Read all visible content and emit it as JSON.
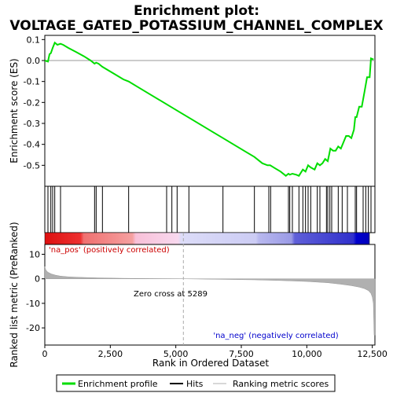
{
  "title_line1": "Enrichment plot:",
  "title_line2": "VOLTAGE_GATED_POTASSIUM_CHANNEL_COMPLEX",
  "chart_data": [
    {
      "type": "line",
      "panel": "enrichment-score",
      "ylabel": "Enrichment score (ES)",
      "xlim": [
        0,
        12600
      ],
      "ylim": [
        -0.6,
        0.12
      ],
      "yticks": [
        0.1,
        0.0,
        -0.1,
        -0.2,
        -0.3,
        -0.4,
        -0.5
      ],
      "ytick_labels": [
        "0.1",
        "0.0",
        "-0.1",
        "-0.2",
        "-0.3",
        "-0.4",
        "-0.5"
      ],
      "grid": false,
      "series": [
        {
          "name": "Enrichment profile",
          "color": "#00dd00",
          "x": [
            0,
            120,
            180,
            230,
            300,
            380,
            480,
            600,
            700,
            900,
            1200,
            1500,
            1750,
            1900,
            1960,
            2050,
            2200,
            2600,
            3000,
            3200,
            3600,
            4000,
            4400,
            4800,
            5200,
            5600,
            6000,
            6400,
            6800,
            7200,
            7600,
            8000,
            8300,
            8500,
            8600,
            8800,
            9000,
            9200,
            9300,
            9350,
            9450,
            9600,
            9700,
            9850,
            9950,
            10050,
            10150,
            10300,
            10400,
            10500,
            10600,
            10700,
            10800,
            10850,
            10900,
            11000,
            11100,
            11200,
            11300,
            11400,
            11500,
            11600,
            11700,
            11800,
            11850,
            11900,
            12000,
            12100,
            12200,
            12300,
            12400,
            12450,
            12550
          ],
          "y": [
            0.0,
            -0.005,
            0.03,
            0.035,
            0.06,
            0.085,
            0.075,
            0.08,
            0.075,
            0.06,
            0.04,
            0.02,
            0.0,
            -0.015,
            -0.01,
            -0.015,
            -0.03,
            -0.06,
            -0.09,
            -0.1,
            -0.13,
            -0.16,
            -0.19,
            -0.22,
            -0.25,
            -0.28,
            -0.31,
            -0.34,
            -0.37,
            -0.4,
            -0.43,
            -0.46,
            -0.49,
            -0.5,
            -0.5,
            -0.515,
            -0.53,
            -0.55,
            -0.54,
            -0.545,
            -0.54,
            -0.545,
            -0.55,
            -0.52,
            -0.53,
            -0.5,
            -0.51,
            -0.52,
            -0.49,
            -0.5,
            -0.49,
            -0.47,
            -0.48,
            -0.45,
            -0.42,
            -0.43,
            -0.43,
            -0.41,
            -0.42,
            -0.39,
            -0.36,
            -0.36,
            -0.37,
            -0.33,
            -0.27,
            -0.27,
            -0.22,
            -0.22,
            -0.15,
            -0.08,
            -0.08,
            0.01,
            0.005
          ]
        }
      ]
    },
    {
      "type": "scatter",
      "panel": "hits",
      "series": [
        {
          "name": "Hits",
          "color": "#000000",
          "x": [
            120,
            230,
            300,
            380,
            600,
            1900,
            1960,
            2200,
            3200,
            4650,
            4850,
            5050,
            5500,
            6800,
            8000,
            8550,
            8620,
            9300,
            9350,
            9450,
            9700,
            9850,
            9950,
            10050,
            10150,
            10400,
            10500,
            10750,
            10800,
            10880,
            10950,
            11200,
            11350,
            11550,
            11850,
            11900,
            12150,
            12250,
            12350,
            12450
          ]
        }
      ]
    },
    {
      "type": "area",
      "panel": "ranked-list",
      "ylabel": "Ranked list metric (PreRanked)",
      "xlabel": "Rank in Ordered Dataset",
      "xlim": [
        0,
        12600
      ],
      "ylim": [
        -27,
        14
      ],
      "yticks": [
        10,
        0,
        -10,
        -20
      ],
      "ytick_labels": [
        "10",
        "0",
        "-10",
        "-20"
      ],
      "xticks": [
        0,
        2500,
        5000,
        7500,
        10000,
        12500
      ],
      "xtick_labels": [
        "0",
        "2,500",
        "5,000",
        "7,500",
        "10,000",
        "12,500"
      ],
      "zero_cross": 5289,
      "series": [
        {
          "name": "Ranking metric scores",
          "color": "#b0b0b0",
          "x": [
            0,
            30,
            80,
            150,
            250,
            400,
            600,
            900,
            1300,
            2000,
            3000,
            4000,
            5289,
            6500,
            8000,
            9000,
            10000,
            10800,
            11300,
            11700,
            12000,
            12200,
            12350,
            12450,
            12500,
            12540,
            12570,
            12600
          ],
          "y": [
            5.0,
            3.8,
            3.0,
            2.5,
            2.0,
            1.5,
            1.1,
            0.8,
            0.6,
            0.4,
            0.2,
            0.1,
            0.0,
            -0.2,
            -0.4,
            -0.7,
            -1.1,
            -1.6,
            -2.2,
            -2.8,
            -3.4,
            -4.0,
            -4.8,
            -6.0,
            -7.5,
            -10.0,
            -23.0,
            -23.0
          ]
        }
      ]
    }
  ],
  "annotations": {
    "pos_label": "'na_pos' (positively correlated)",
    "neg_label": "'na_neg' (negatively correlated)",
    "zero_cross_label": "Zero cross at 5289"
  },
  "legend": {
    "placement": "bottom",
    "items": [
      {
        "label": "Enrichment profile",
        "color": "#00dd00"
      },
      {
        "label": "Hits",
        "color": "#000000"
      },
      {
        "label": "Ranking metric scores",
        "color": "#b0b0b0"
      }
    ]
  },
  "colors": {
    "pos_label": "#cc0000",
    "neg_label": "#0000cc",
    "heat_positive": "#dd0000",
    "heat_negative": "#0000cc"
  }
}
